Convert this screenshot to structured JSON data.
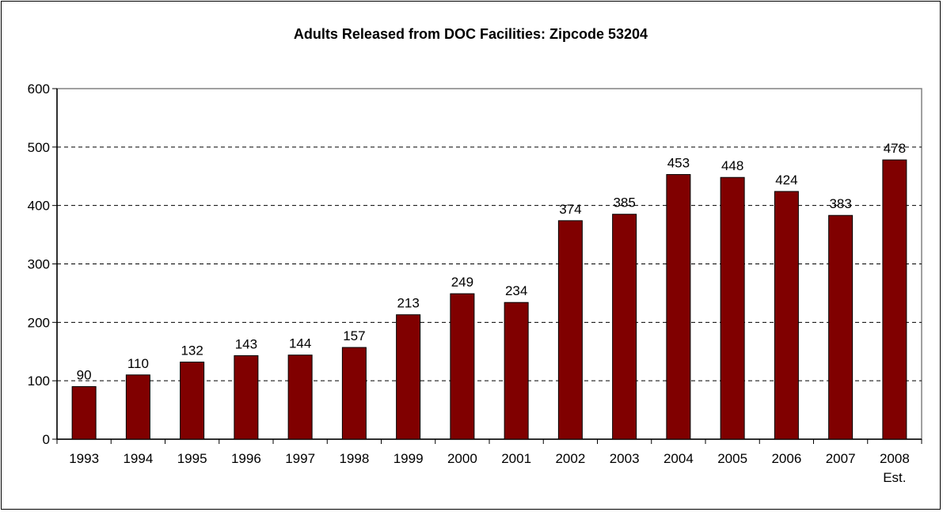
{
  "chart_data": {
    "type": "bar",
    "title": "Adults Released from DOC Facilities: Zipcode 53204",
    "xlabel": "",
    "ylabel": "",
    "categories": [
      "1993",
      "1994",
      "1995",
      "1996",
      "1997",
      "1998",
      "1999",
      "2000",
      "2001",
      "2002",
      "2003",
      "2004",
      "2005",
      "2006",
      "2007",
      "2008 Est."
    ],
    "category_lines": [
      [
        "1993"
      ],
      [
        "1994"
      ],
      [
        "1995"
      ],
      [
        "1996"
      ],
      [
        "1997"
      ],
      [
        "1998"
      ],
      [
        "1999"
      ],
      [
        "2000"
      ],
      [
        "2001"
      ],
      [
        "2002"
      ],
      [
        "2003"
      ],
      [
        "2004"
      ],
      [
        "2005"
      ],
      [
        "2006"
      ],
      [
        "2007"
      ],
      [
        "2008",
        "Est."
      ]
    ],
    "values": [
      90,
      110,
      132,
      143,
      144,
      157,
      213,
      249,
      234,
      374,
      385,
      453,
      448,
      424,
      383,
      478
    ],
    "ylim": [
      0,
      600
    ],
    "yticks": [
      0,
      100,
      200,
      300,
      400,
      500,
      600
    ],
    "grid": "dashed horizontal",
    "legend": "none",
    "data_labels": true
  },
  "colors": {
    "bar_fill": "#800000",
    "bar_stroke": "#000000",
    "grid": "#000000",
    "plot_border": "#808080",
    "text": "#000000"
  }
}
